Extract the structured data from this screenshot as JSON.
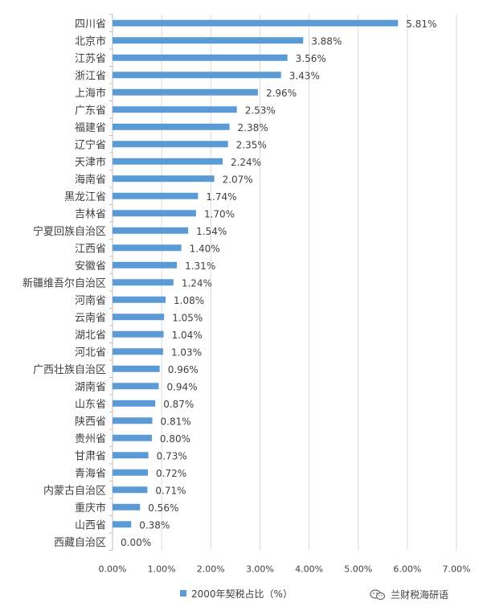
{
  "chart_data": {
    "type": "bar",
    "orientation": "horizontal",
    "title": "",
    "xlabel": "",
    "ylabel": "",
    "categories": [
      "四川省",
      "北京市",
      "江苏省",
      "浙江省",
      "上海市",
      "广东省",
      "福建省",
      "辽宁省",
      "天津市",
      "海南省",
      "黑龙江省",
      "吉林省",
      "宁夏回族自治区",
      "江西省",
      "安徽省",
      "新疆维吾尔自治区",
      "河南省",
      "云南省",
      "湖北省",
      "河北省",
      "广西壮族自治区",
      "湖南省",
      "山东省",
      "陕西省",
      "贵州省",
      "甘肃省",
      "青海省",
      "内蒙古自治区",
      "重庆市",
      "山西省",
      "西藏自治区"
    ],
    "series": [
      {
        "name": "2000年契税占比（%）",
        "values": [
          5.81,
          3.88,
          3.56,
          3.43,
          2.96,
          2.53,
          2.38,
          2.35,
          2.24,
          2.07,
          1.74,
          1.7,
          1.54,
          1.4,
          1.31,
          1.24,
          1.08,
          1.05,
          1.04,
          1.03,
          0.96,
          0.94,
          0.87,
          0.81,
          0.8,
          0.73,
          0.72,
          0.71,
          0.56,
          0.38,
          0.0
        ],
        "value_labels": [
          "5.81%",
          "3.88%",
          "3.56%",
          "3.43%",
          "2.96%",
          "2.53%",
          "2.38%",
          "2.35%",
          "2.24%",
          "2.07%",
          "1.74%",
          "1.70%",
          "1.54%",
          "1.40%",
          "1.31%",
          "1.24%",
          "1.08%",
          "1.05%",
          "1.04%",
          "1.03%",
          "0.96%",
          "0.94%",
          "0.87%",
          "0.81%",
          "0.80%",
          "0.73%",
          "0.72%",
          "0.71%",
          "0.56%",
          "0.38%",
          "0.00%"
        ]
      }
    ],
    "xlim": [
      0,
      7
    ],
    "x_ticks": [
      "0.00%",
      "1.00%",
      "2.00%",
      "3.00%",
      "4.00%",
      "5.00%",
      "6.00%",
      "7.00%"
    ],
    "grid": "vertical",
    "legend_position": "bottom",
    "colors": {
      "bar": "#5b9bd5",
      "grid": "#d9d9d9",
      "text": "#404040"
    }
  },
  "legend": {
    "label": "2000年契税占比（%）"
  },
  "watermark": {
    "text": "兰财税海研语",
    "icon": "wechat-icon"
  }
}
